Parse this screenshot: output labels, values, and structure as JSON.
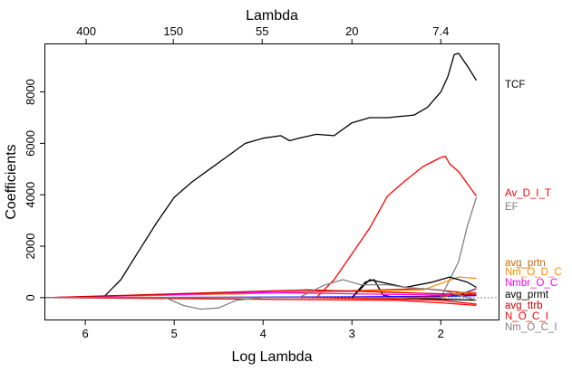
{
  "chart_data": {
    "type": "line",
    "title": "",
    "xlabel": "Log Lambda",
    "ylabel": "Coefficients",
    "top_axis_label": "Lambda",
    "xlim": [
      6.45,
      1.35
    ],
    "ylim": [
      -850,
      9850
    ],
    "x_ticks": [
      6,
      5,
      4,
      3,
      2
    ],
    "x_tick_labels": [
      "6",
      "5",
      "4",
      "3",
      "2"
    ],
    "y_ticks": [
      0,
      2000,
      4000,
      6000,
      8000
    ],
    "y_tick_labels": [
      "0",
      "2000",
      "4000",
      "6000",
      "8000"
    ],
    "top_ticks": [
      5.99,
      5.01,
      4.01,
      3.0,
      2.0
    ],
    "top_tick_labels": [
      "400",
      "150",
      "55",
      "20",
      "7.4"
    ],
    "zero_line": true,
    "grid": false,
    "legend": "right-margin labels",
    "series": [
      {
        "name": "TCF",
        "color": "#000000",
        "x": [
          6.45,
          5.8,
          5.6,
          5.4,
          5.2,
          5.0,
          4.8,
          4.6,
          4.4,
          4.2,
          4.0,
          3.8,
          3.7,
          3.6,
          3.4,
          3.2,
          3.0,
          2.8,
          2.6,
          2.3,
          2.15,
          2.0,
          1.92,
          1.85,
          1.8,
          1.7,
          1.6
        ],
        "y": [
          0,
          0,
          700,
          1800,
          2900,
          3900,
          4500,
          5000,
          5500,
          6000,
          6200,
          6300,
          6100,
          6200,
          6350,
          6300,
          6800,
          7000,
          7000,
          7100,
          7400,
          8000,
          8600,
          9450,
          9500,
          9000,
          8450
        ]
      },
      {
        "name": "Av_D_I_T",
        "color": "#ff0000",
        "x": [
          6.45,
          3.4,
          3.2,
          3.0,
          2.8,
          2.6,
          2.4,
          2.2,
          2.0,
          1.95,
          1.9,
          1.8,
          1.6
        ],
        "y": [
          0,
          0,
          700,
          1700,
          2700,
          3950,
          4550,
          5100,
          5450,
          5500,
          5200,
          4900,
          3950
        ]
      },
      {
        "name": "EF",
        "color": "#808080",
        "x": [
          6.45,
          5.1,
          4.9,
          4.7,
          4.5,
          4.3,
          4.0,
          3.6,
          3.2,
          2.4,
          2.0,
          1.8,
          1.7,
          1.6
        ],
        "y": [
          0,
          0,
          -300,
          -450,
          -400,
          -100,
          0,
          0,
          0,
          0,
          0,
          1400,
          2800,
          3900
        ]
      },
      {
        "name": "avg_prtn",
        "color": "#cc6600",
        "x": [
          6.45,
          2.0,
          1.8,
          1.6
        ],
        "y": [
          0,
          0,
          200,
          200
        ]
      },
      {
        "name": "Nm_O_D_C",
        "color": "#ff8c00",
        "x": [
          6.45,
          4.2,
          3.0,
          2.2,
          2.0,
          1.8,
          1.6
        ],
        "y": [
          0,
          150,
          250,
          300,
          550,
          800,
          750
        ]
      },
      {
        "name": "Nmbr_O_C",
        "color": "#ff00ff",
        "x": [
          6.45,
          4.0,
          3.0,
          2.0,
          1.6
        ],
        "y": [
          0,
          200,
          150,
          100,
          150
        ]
      },
      {
        "name": "avg_prmt",
        "color": "#000000",
        "x": [
          6.45,
          3.6,
          3.0,
          2.8,
          2.4,
          2.1,
          1.9,
          1.7,
          1.6
        ],
        "y": [
          0,
          0,
          0,
          700,
          400,
          600,
          800,
          600,
          400
        ]
      },
      {
        "name": "avg_ttrb",
        "color": "#cc0000",
        "x": [
          6.45,
          4.5,
          3.5,
          2.5,
          2.0,
          1.6
        ],
        "y": [
          0,
          200,
          300,
          200,
          150,
          100
        ]
      },
      {
        "name": "N_O_C_I",
        "color": "#ff0000",
        "x": [
          6.45,
          3.5,
          2.5,
          2.0,
          1.6
        ],
        "y": [
          0,
          0,
          -50,
          -100,
          -250
        ]
      },
      {
        "name": "Nm_O_C_I",
        "color": "#808080",
        "x": [
          6.45,
          3.6,
          3.3,
          3.1,
          2.9,
          2.6,
          2.4,
          2.0,
          1.6
        ],
        "y": [
          0,
          0,
          500,
          700,
          500,
          500,
          400,
          300,
          -100
        ]
      }
    ],
    "extra_lines": [
      {
        "color": "#000000",
        "x": [
          6.45,
          3.0,
          2.85,
          2.75,
          2.65,
          2.5,
          1.6
        ],
        "y": [
          0,
          0,
          600,
          700,
          100,
          0,
          -100
        ]
      },
      {
        "color": "#0000ff",
        "x": [
          6.45,
          3.0,
          2.0,
          1.6
        ],
        "y": [
          0,
          30,
          50,
          80
        ]
      },
      {
        "color": "#ff0000",
        "x": [
          6.45,
          3.2,
          2.2,
          1.6
        ],
        "y": [
          0,
          250,
          350,
          150
        ]
      },
      {
        "color": "#ff0000",
        "x": [
          6.45,
          2.5,
          2.0,
          1.6
        ],
        "y": [
          0,
          -100,
          -200,
          -300
        ]
      },
      {
        "color": "#800080",
        "x": [
          6.45,
          2.5,
          1.8,
          1.6
        ],
        "y": [
          0,
          0,
          100,
          350
        ]
      }
    ],
    "labels": [
      {
        "text": "TCF",
        "color": "#000000"
      },
      {
        "text": "Av_D_I_T",
        "color": "#ff0000"
      },
      {
        "text": "EF",
        "color": "#808080"
      },
      {
        "text": "avg_prtn",
        "color": "#cc6600"
      },
      {
        "text": "Nm_O_D_C",
        "color": "#ff8c00"
      },
      {
        "text": "Nmbr_O_C",
        "color": "#ff00ff"
      },
      {
        "text": "avg_prmt",
        "color": "#000000"
      },
      {
        "text": "avg_ttrb",
        "color": "#cc0000"
      },
      {
        "text": "N_O_C_I",
        "color": "#ff0000"
      },
      {
        "text": "Nm_O_C_I",
        "color": "#808080"
      }
    ]
  }
}
